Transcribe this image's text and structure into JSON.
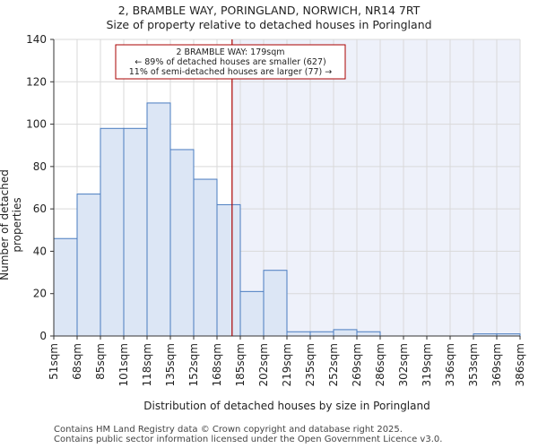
{
  "title_line1": "2, BRAMBLE WAY, PORINGLAND, NORWICH, NR14 7RT",
  "title_line2": "Size of property relative to detached houses in Poringland",
  "footer_line1": "Contains HM Land Registry data © Crown copyright and database right 2025.",
  "footer_line2": "Contains public sector information licensed under the Open Government Licence v3.0.",
  "chart_data": {
    "type": "bar",
    "xlabel": "Distribution of detached houses by size in Poringland",
    "ylabel": "Number of detached properties",
    "ylim": [
      0,
      140
    ],
    "yticks": [
      0,
      20,
      40,
      60,
      80,
      100,
      120,
      140
    ],
    "grid": true,
    "bin_edges": [
      51,
      68,
      85,
      101,
      118,
      135,
      152,
      168,
      185,
      202,
      219,
      235,
      252,
      269,
      286,
      302,
      319,
      336,
      353,
      369,
      386
    ],
    "xtick_labels": [
      "51sqm",
      "68sqm",
      "85sqm",
      "101sqm",
      "118sqm",
      "135sqm",
      "152sqm",
      "168sqm",
      "185sqm",
      "202sqm",
      "219sqm",
      "235sqm",
      "252sqm",
      "269sqm",
      "286sqm",
      "302sqm",
      "319sqm",
      "336sqm",
      "353sqm",
      "369sqm",
      "386sqm"
    ],
    "values": [
      46,
      67,
      98,
      98,
      110,
      88,
      74,
      62,
      21,
      31,
      2,
      2,
      3,
      2,
      0,
      0,
      0,
      0,
      1,
      1
    ],
    "highlight": {
      "value": 179,
      "line_color": "#aa0000",
      "annotation": [
        "2 BRAMBLE WAY: 179sqm",
        "← 89% of detached houses are smaller (627)",
        "11% of semi-detached houses are larger (77) →"
      ]
    },
    "colors": {
      "bar_fill": "#dce6f5",
      "bar_stroke": "#4a7cc0",
      "shade_right": "#eef1fa",
      "grid": "#d9d9d9"
    }
  }
}
